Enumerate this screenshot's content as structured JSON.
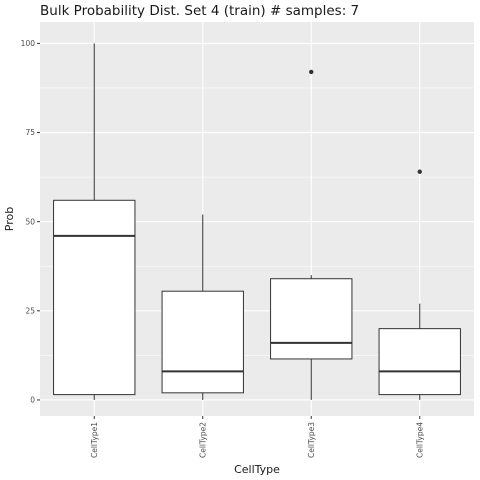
{
  "chart_data": {
    "type": "boxplot",
    "title": "Bulk Probability Dist. Set 4 (train) # samples: 7",
    "xlabel": "CellType",
    "ylabel": "Prob",
    "ylim": [
      -4.5,
      106
    ],
    "y_ticks": [
      0,
      25,
      50,
      75,
      100
    ],
    "y_tick_labels": [
      "0",
      "25",
      "50",
      "75",
      "100"
    ],
    "grid": true,
    "categories": [
      "CellType1",
      "CellType2",
      "CellType3",
      "CellType4"
    ],
    "boxes": [
      {
        "category": "CellType1",
        "whisker_low": 0,
        "q1": 1.5,
        "median": 46,
        "q3": 56,
        "whisker_high": 100,
        "outliers": []
      },
      {
        "category": "CellType2",
        "whisker_low": 0,
        "q1": 2,
        "median": 8,
        "q3": 30.5,
        "whisker_high": 52,
        "outliers": []
      },
      {
        "category": "CellType3",
        "whisker_low": 0,
        "q1": 11.5,
        "median": 16,
        "q3": 34,
        "whisker_high": 35,
        "outliers": [
          92
        ]
      },
      {
        "category": "CellType4",
        "whisker_low": 0,
        "q1": 1.5,
        "median": 8,
        "q3": 20,
        "whisker_high": 27,
        "outliers": [
          64
        ]
      }
    ],
    "colors": {
      "panel": "#ebebeb",
      "grid_major": "#ffffff",
      "box_fill": "#ffffff",
      "box_line": "#333333",
      "text": "#1a1a1a",
      "tick_text": "#4d4d4d"
    }
  }
}
